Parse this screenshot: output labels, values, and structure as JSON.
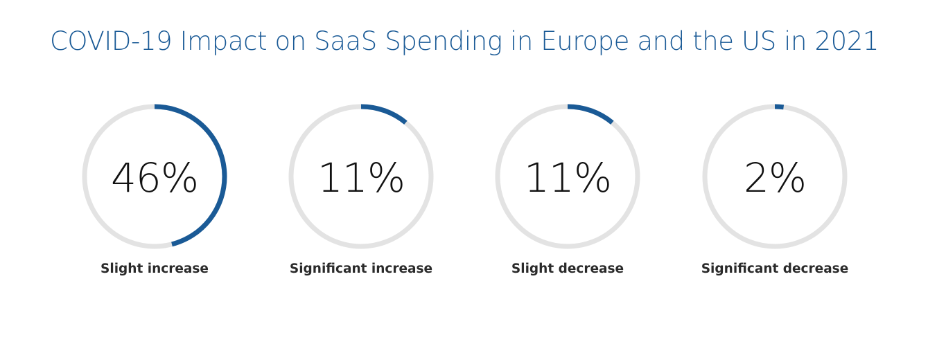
{
  "title": "COVID-19 Impact on SaaS Spending in Europe and the US in 2021",
  "colors": {
    "accent": "#1a5a96",
    "track": "#e3e3e3",
    "value_text": "#111111",
    "label_text": "#2a2a2a"
  },
  "chart_data": {
    "type": "donut-gauges",
    "title": "COVID-19 Impact on SaaS Spending in Europe and the US in 2021",
    "unit": "%",
    "categories": [
      "Slight increase",
      "Significant increase",
      "Slight decrease",
      "Significant decrease"
    ],
    "values": [
      46,
      11,
      11,
      2
    ],
    "display_values": [
      "46%",
      "11%",
      "11%",
      "2%"
    ]
  }
}
